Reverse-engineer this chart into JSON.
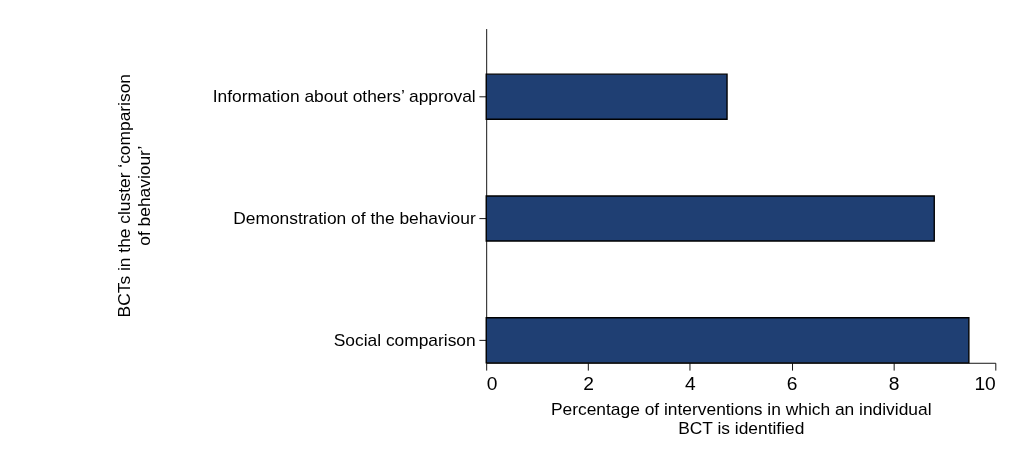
{
  "chart_data": {
    "type": "bar",
    "orientation": "horizontal",
    "categories": [
      "Information about others’ approval",
      "Demonstration of the behaviour",
      "Social comparison"
    ],
    "values": [
      4.73,
      8.8,
      9.48
    ],
    "color": "#1f3f73",
    "xlim": [
      0,
      10
    ],
    "xticks": [
      0,
      2,
      4,
      6,
      8,
      10
    ],
    "xlabel": "Percentage of interventions in which an individual BCT is identified",
    "ylabel": "BCTs in the cluster ‘comparison of behaviour’",
    "grid": false
  }
}
